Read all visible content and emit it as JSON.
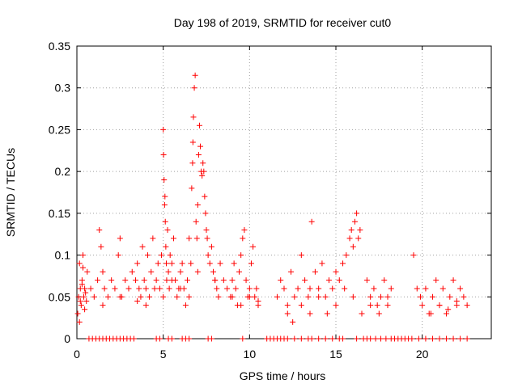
{
  "chart_data": {
    "type": "scatter",
    "title": "Day 198 of 2019, SRMTID for receiver cut0",
    "xlabel": "GPS time / hours",
    "ylabel": "SRMTID / TECUs",
    "xlim": [
      0,
      24
    ],
    "ylim": [
      0,
      0.35
    ],
    "x_ticks": [
      "0",
      "5",
      "10",
      "15",
      "20"
    ],
    "y_ticks": [
      "0",
      "0.05",
      "0.1",
      "0.15",
      "0.2",
      "0.25",
      "0.3",
      "0.35"
    ],
    "grid": true,
    "legend": "none",
    "marker": "+",
    "color": "#ff0000",
    "series": [
      {
        "x": [
          0.05,
          0.1,
          0.15,
          0.2,
          0.25,
          0.3,
          0.35,
          0.4,
          0.45,
          0.5,
          0.55,
          0.6,
          0.15,
          0.3,
          0.45,
          0.2,
          0.35,
          0.8,
          1.0,
          1.2,
          1.3,
          1.4,
          1.5,
          1.6,
          1.8,
          2.0,
          2.2,
          2.4,
          2.5,
          2.6,
          2.8,
          3.0,
          3.2,
          3.4,
          3.5,
          3.6,
          3.7,
          3.8,
          3.9,
          4.0,
          4.1,
          4.2,
          4.3,
          4.4,
          4.5,
          4.6,
          4.7,
          4.8,
          4.9,
          5.0,
          5.02,
          5.05,
          5.08,
          5.1,
          5.12,
          5.15,
          5.18,
          5.2,
          5.25,
          5.3,
          5.35,
          5.4,
          5.5,
          5.6,
          5.7,
          5.8,
          5.9,
          6.0,
          6.1,
          6.2,
          6.3,
          6.4,
          6.5,
          6.6,
          6.65,
          6.7,
          6.72,
          6.75,
          6.8,
          6.85,
          6.9,
          6.95,
          7.0,
          7.05,
          7.1,
          7.15,
          7.2,
          7.25,
          7.3,
          7.35,
          7.4,
          7.45,
          7.5,
          7.55,
          7.6,
          7.7,
          7.8,
          7.9,
          8.0,
          8.1,
          8.2,
          8.3,
          8.5,
          8.7,
          8.9,
          9.0,
          9.1,
          9.2,
          9.3,
          9.4,
          9.5,
          9.6,
          9.7,
          9.8,
          9.9,
          10.0,
          10.1,
          10.2,
          10.3,
          10.4,
          10.5,
          11.6,
          11.8,
          12.0,
          12.2,
          12.4,
          12.6,
          12.8,
          13.0,
          13.2,
          13.4,
          13.5,
          13.6,
          13.8,
          14.0,
          14.2,
          14.4,
          14.6,
          14.8,
          15.0,
          15.2,
          15.4,
          15.6,
          15.8,
          15.9,
          16.0,
          16.1,
          16.2,
          16.3,
          16.4,
          16.8,
          17.0,
          17.2,
          17.4,
          17.6,
          17.8,
          18.0,
          18.2,
          19.5,
          19.7,
          19.9,
          20.0,
          20.2,
          20.4,
          20.6,
          20.8,
          21.0,
          21.2,
          21.4,
          21.6,
          21.8,
          22.0,
          22.2,
          22.4,
          22.6,
          12.2,
          12.5,
          13.0,
          13.5,
          14.0,
          14.5,
          15.0,
          15.5,
          16.0,
          16.5,
          17.0,
          17.5,
          18.0,
          20.5,
          21.0,
          21.5,
          22.0,
          1.5,
          2.5,
          3.5,
          4.0,
          4.5,
          5.0,
          5.5,
          6.0,
          6.5,
          7.0,
          8.0,
          9.0,
          9.5,
          10.0,
          10.5
        ],
        "y": [
          0.03,
          0.05,
          0.09,
          0.06,
          0.04,
          0.07,
          0.1,
          0.05,
          0.035,
          0.055,
          0.045,
          0.08,
          0.02,
          0.065,
          0.06,
          0.045,
          0.085,
          0.06,
          0.05,
          0.07,
          0.13,
          0.11,
          0.08,
          0.06,
          0.05,
          0.07,
          0.06,
          0.1,
          0.12,
          0.05,
          0.07,
          0.06,
          0.08,
          0.07,
          0.09,
          0.06,
          0.05,
          0.11,
          0.07,
          0.06,
          0.1,
          0.05,
          0.08,
          0.12,
          0.06,
          0.07,
          0.09,
          0.06,
          0.1,
          0.25,
          0.22,
          0.19,
          0.16,
          0.17,
          0.14,
          0.11,
          0.09,
          0.07,
          0.13,
          0.08,
          0.06,
          0.1,
          0.09,
          0.12,
          0.07,
          0.05,
          0.06,
          0.08,
          0.09,
          0.06,
          0.04,
          0.07,
          0.12,
          0.09,
          0.18,
          0.21,
          0.235,
          0.265,
          0.3,
          0.315,
          0.14,
          0.12,
          0.16,
          0.22,
          0.255,
          0.23,
          0.2,
          0.195,
          0.21,
          0.2,
          0.17,
          0.15,
          0.13,
          0.12,
          0.1,
          0.09,
          0.11,
          0.08,
          0.07,
          0.06,
          0.05,
          0.09,
          0.07,
          0.06,
          0.05,
          0.07,
          0.09,
          0.06,
          0.04,
          0.08,
          0.1,
          0.12,
          0.13,
          0.07,
          0.05,
          0.06,
          0.09,
          0.11,
          0.05,
          0.06,
          0.04,
          0.05,
          0.07,
          0.06,
          0.04,
          0.08,
          0.05,
          0.06,
          0.1,
          0.07,
          0.05,
          0.06,
          0.14,
          0.08,
          0.06,
          0.09,
          0.05,
          0.07,
          0.06,
          0.08,
          0.07,
          0.09,
          0.1,
          0.12,
          0.13,
          0.11,
          0.14,
          0.15,
          0.12,
          0.13,
          0.07,
          0.05,
          0.06,
          0.04,
          0.05,
          0.07,
          0.04,
          0.06,
          0.1,
          0.06,
          0.05,
          0.04,
          0.06,
          0.03,
          0.05,
          0.07,
          0.04,
          0.06,
          0.03,
          0.05,
          0.07,
          0.04,
          0.06,
          0.05,
          0.04,
          0.03,
          0.02,
          0.04,
          0.03,
          0.05,
          0.03,
          0.04,
          0.06,
          0.05,
          0.03,
          0.04,
          0.03,
          0.05,
          0.03,
          0.04,
          0.035,
          0.045,
          0.04,
          0.05,
          0.045,
          0.04,
          0.06,
          0.05,
          0.07,
          0.06,
          0.05,
          0.08,
          0.07,
          0.05,
          0.04,
          0.05,
          0.045
        ]
      },
      {
        "name": "",
        "x": [
          0.7,
          0.9,
          1.1,
          1.3,
          1.5,
          1.7,
          1.9,
          2.1,
          2.3,
          2.5,
          2.7,
          2.9,
          3.1,
          3.3,
          4.6,
          4.8,
          5.3,
          5.5,
          6.1,
          6.3,
          6.5,
          7.6,
          7.8,
          9.6,
          11.0,
          11.2,
          11.4,
          11.6,
          11.8,
          12.0,
          12.2,
          12.6,
          13.0,
          13.4,
          13.6,
          14.0,
          14.4,
          14.8,
          15.2,
          15.4,
          16.2,
          16.6,
          16.8,
          17.0,
          17.3,
          17.6,
          17.9,
          18.2,
          18.4,
          18.6,
          18.8,
          19.0,
          19.2,
          19.4,
          19.8,
          20.2,
          20.6,
          21.0,
          21.4,
          21.8,
          22.2,
          22.6
        ],
        "y": [
          0,
          0,
          0,
          0,
          0,
          0,
          0,
          0,
          0,
          0,
          0,
          0,
          0,
          0,
          0,
          0,
          0,
          0,
          0,
          0,
          0,
          0,
          0,
          0,
          0,
          0,
          0,
          0,
          0,
          0,
          0,
          0,
          0,
          0,
          0,
          0,
          0,
          0,
          0,
          0,
          0,
          0,
          0,
          0,
          0,
          0,
          0,
          0,
          0,
          0,
          0,
          0,
          0,
          0,
          0,
          0,
          0,
          0,
          0,
          0,
          0,
          0
        ]
      }
    ]
  }
}
